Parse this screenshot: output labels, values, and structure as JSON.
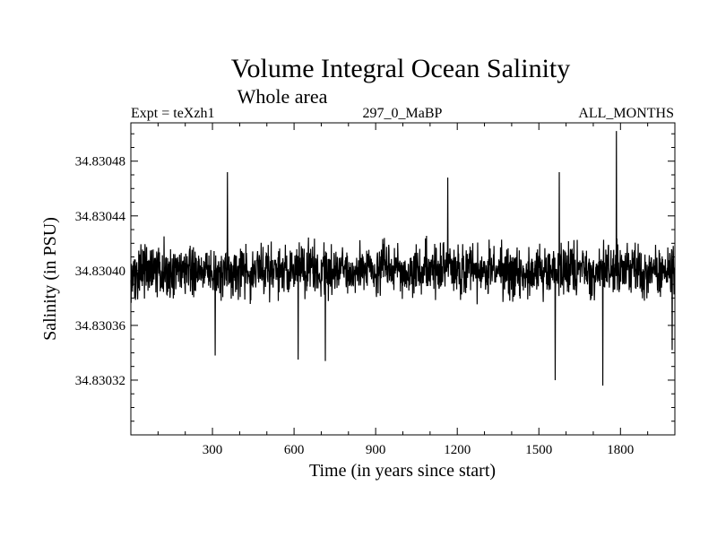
{
  "chart_data": {
    "type": "line",
    "title": "Volume Integral Ocean Salinity",
    "subtitle": "Whole area",
    "experiment_label": "Expt = teXzh1",
    "period_label": "297_0_MaBP",
    "months_label": "ALL_MONTHS",
    "xlabel": "Time (in years since start)",
    "ylabel": "Salinity (in PSU)",
    "xlim": [
      0,
      2000
    ],
    "ylim": [
      34.83028,
      34.830508
    ],
    "x_ticks": [
      300,
      600,
      900,
      1200,
      1500,
      1800
    ],
    "x_tick_labels": [
      "300",
      "600",
      "900",
      "1200",
      "1500",
      "1800"
    ],
    "y_ticks": [
      34.83032,
      34.83036,
      34.8304,
      34.83044,
      34.83048
    ],
    "y_tick_labels": [
      "34.83032",
      "34.83036",
      "34.83040",
      "34.83044",
      "34.83048"
    ],
    "series": [
      {
        "name": "salinity",
        "baseline": 34.8304,
        "noise_amplitude": 3e-05,
        "n_points": 2000,
        "notable_points": [
          {
            "x": 1785,
            "y": 34.830502
          },
          {
            "x": 1560,
            "y": 34.83032
          },
          {
            "x": 1735,
            "y": 34.830316
          },
          {
            "x": 615,
            "y": 34.830335
          },
          {
            "x": 715,
            "y": 34.830334
          },
          {
            "x": 310,
            "y": 34.830338
          },
          {
            "x": 1990,
            "y": 34.830342
          },
          {
            "x": 355,
            "y": 34.830472
          },
          {
            "x": 1165,
            "y": 34.830468
          },
          {
            "x": 1575,
            "y": 34.830472
          }
        ]
      }
    ],
    "grid": false,
    "legend": "none"
  }
}
